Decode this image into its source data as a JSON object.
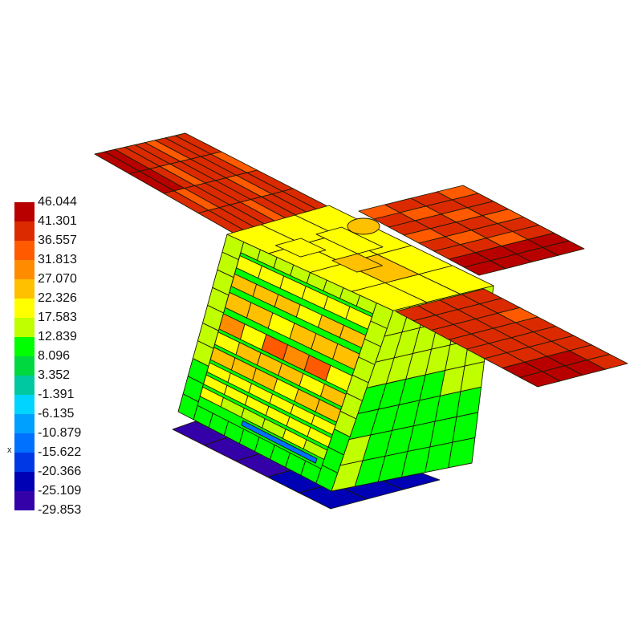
{
  "legend": {
    "labels": [
      "46.044",
      "41.301",
      "36.557",
      "31.813",
      "27.070",
      "22.326",
      "17.583",
      "12.839",
      "8.096",
      "3.352",
      "-1.391",
      "-6.135",
      "-10.879",
      "-15.622",
      "-20.366",
      "-25.109",
      "-29.853"
    ],
    "colors": [
      "#b80000",
      "#dc2a00",
      "#ff5a00",
      "#ff8c00",
      "#ffc000",
      "#ffff00",
      "#c0ff00",
      "#00ff00",
      "#00d840",
      "#00c8a0",
      "#00d4ff",
      "#00a0ff",
      "#0070ff",
      "#0038e6",
      "#0000b4",
      "#3400a8"
    ]
  },
  "axis_label": "x",
  "line_color": "#1a1a00"
}
